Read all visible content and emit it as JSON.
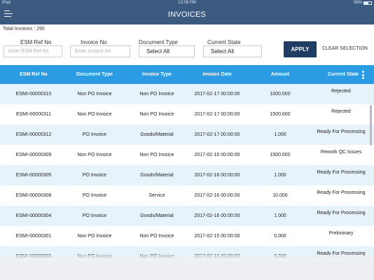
{
  "status_bar": {
    "device": "iPad",
    "time": "12:08 PM",
    "battery": "56%"
  },
  "header": {
    "title": "INVOICES"
  },
  "total_label": "Total Invoices : 295",
  "filters": {
    "esm_ref": {
      "label": "ESM Ref No",
      "placeholder": "Enter ESM Ref No",
      "value": ""
    },
    "invoice_no": {
      "label": "Invoice No",
      "placeholder": "Enter Invoice No",
      "value": ""
    },
    "document_type": {
      "label": "Document Type",
      "value": "Select All"
    },
    "current_state": {
      "label": "Current State",
      "value": "Select All"
    }
  },
  "actions": {
    "apply": "APPLY",
    "clear": "CLEAR SELECTION"
  },
  "table": {
    "columns": [
      "ESM Ref No",
      "Document Type",
      "Invoice Type",
      "Invoice Date",
      "Amount",
      "Current State"
    ],
    "rows": [
      {
        "ref": "ESMI-00000310",
        "doc": "Non PO Invoice",
        "inv": "Non PO Invoice",
        "date": "2017-02-17 00:00:00",
        "amount": "1000.000",
        "state": "Rejected"
      },
      {
        "ref": "ESMI-00000311",
        "doc": "Non PO Invoice",
        "inv": "Non PO Invoice",
        "date": "2017-02-17 00:00:00",
        "amount": "1500.000",
        "state": "Rejected"
      },
      {
        "ref": "ESMI-00000312",
        "doc": "PO Invoice",
        "inv": "Goods/Material",
        "date": "2017-02-17 00:00:00",
        "amount": "1.000",
        "state": "Ready For Processing"
      },
      {
        "ref": "ESMI-00000309",
        "doc": "Non PO Invoice",
        "inv": "Non PO Invoice",
        "date": "2017-02-16 00:00:00",
        "amount": "1500.000",
        "state": "Rework QC Issues"
      },
      {
        "ref": "ESMI-00000305",
        "doc": "PO Invoice",
        "inv": "Goods/Material",
        "date": "2017-02-16 00:00:00",
        "amount": "1.000",
        "state": "Ready For Processing"
      },
      {
        "ref": "ESMI-00000308",
        "doc": "PO Invoice",
        "inv": "Service",
        "date": "2017-02-16 00:00:00",
        "amount": "10.000",
        "state": "Ready For Processing"
      },
      {
        "ref": "ESMI-00000304",
        "doc": "PO Invoice",
        "inv": "Goods/Material",
        "date": "2017-02-16 00:00:00",
        "amount": "1.000",
        "state": "Ready For Processing"
      },
      {
        "ref": "ESMI-00000301",
        "doc": "Non PO Invoice",
        "inv": "Non PO Invoice",
        "date": "2017-02-15 00:00:00",
        "amount": "0.000",
        "state": "Preliminary"
      },
      {
        "ref": "ESMI-00000300",
        "doc": "Non PO Invoice",
        "inv": "Non PO Invoice",
        "date": "2017-02-15 00:00:00",
        "amount": "0.000",
        "state": "Ready For Processing"
      }
    ]
  },
  "colors": {
    "navbar": "#3c5a80",
    "table_header": "#2b9be3",
    "apply_button": "#203d63",
    "row_alt": "#e7f3fb"
  },
  "icons": {
    "menu": "hamburger-menu-icon",
    "column_options": "kebab-vertical-icon"
  }
}
